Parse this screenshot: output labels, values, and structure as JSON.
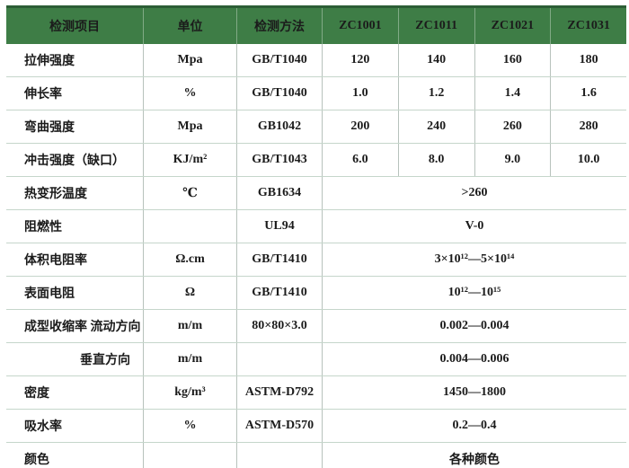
{
  "table": {
    "header": {
      "item": "检测项目",
      "unit": "单位",
      "method": "检测方法",
      "products": [
        "ZC1001",
        "ZC1011",
        "ZC1021",
        "ZC1031"
      ]
    },
    "rows": [
      {
        "label": "拉伸强度",
        "unit": "Mpa",
        "method": "GB/T1040",
        "values": [
          "120",
          "140",
          "160",
          "180"
        ]
      },
      {
        "label": "伸长率",
        "unit": "%",
        "method": "GB/T1040",
        "values": [
          "1.0",
          "1.2",
          "1.4",
          "1.6"
        ]
      },
      {
        "label": "弯曲强度",
        "unit": "Mpa",
        "method": "GB1042",
        "values": [
          "200",
          "240",
          "260",
          "280"
        ]
      },
      {
        "label": "冲击强度（缺口）",
        "unit": "KJ/m²",
        "method": "GB/T1043",
        "values": [
          "6.0",
          "8.0",
          "9.0",
          "10.0"
        ]
      },
      {
        "label": "热变形温度",
        "unit": "℃",
        "method": "GB1634",
        "value": ">260"
      },
      {
        "label": "阻燃性",
        "unit": "",
        "method": "UL94",
        "value": "V-0"
      },
      {
        "label": "体积电阻率",
        "unit": "Ω.cm",
        "method": "GB/T1410",
        "value": "3×10¹²—5×10¹⁴"
      },
      {
        "label": "表面电阻",
        "unit": "Ω",
        "method": "GB/T1410",
        "value": "10¹²—10¹⁵"
      },
      {
        "label": "成型收缩率 流动方向",
        "unit": "m/m",
        "method": "80×80×3.0",
        "value": "0.002—0.004"
      },
      {
        "label": "垂直方向",
        "align": "right",
        "unit": "m/m",
        "method": "",
        "value": "0.004—0.006"
      },
      {
        "label": "密度",
        "unit": "kg/m³",
        "method": "ASTM-D792",
        "value": "1450—1800"
      },
      {
        "label": "吸水率",
        "unit": "%",
        "method": "ASTM-D570",
        "value": "0.2—0.4"
      },
      {
        "label": "颜色",
        "unit": "",
        "method": "",
        "value": "各种颜色"
      }
    ]
  },
  "colors": {
    "header_bg": "#3e7d46",
    "header_text": "#ffffff",
    "header_top_border": "#2c5e36",
    "grid_horizontal": "#c5d6cb",
    "grid_vertical": "#b7c2bc",
    "bottom_border": "#a3aca7",
    "body_text": "#1b1b1b"
  }
}
